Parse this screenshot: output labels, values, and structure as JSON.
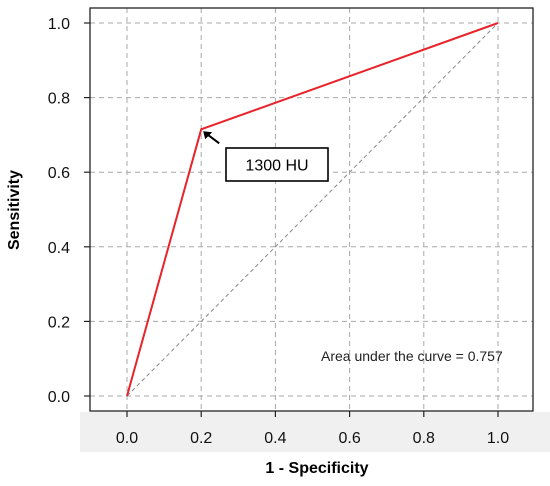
{
  "chart_data": {
    "type": "line",
    "title": "",
    "xlabel": "1 - Specificity",
    "ylabel": "Sensitivity",
    "xlim": [
      -0.1,
      1.1
    ],
    "ylim": [
      0.0,
      1.0
    ],
    "x_ticks": [
      "0.0",
      "0.2",
      "0.4",
      "0.6",
      "0.8",
      "1.0"
    ],
    "y_ticks": [
      "0.0",
      "0.2",
      "0.4",
      "0.6",
      "0.8",
      "1.0"
    ],
    "grid": true,
    "series": [
      {
        "color": "#e8232a",
        "x": [
          0.0,
          0.2,
          1.0
        ],
        "y": [
          0.0,
          0.715,
          1.0
        ]
      },
      {
        "color": "#888888",
        "style": "dashed",
        "x": [
          0.0,
          1.0
        ],
        "y": [
          0.0,
          1.0
        ]
      }
    ],
    "annotations": [
      {
        "text": "1300 HU",
        "x": 0.2,
        "y": 0.715
      },
      {
        "text": "Area under the curve = 0.757"
      }
    ]
  }
}
